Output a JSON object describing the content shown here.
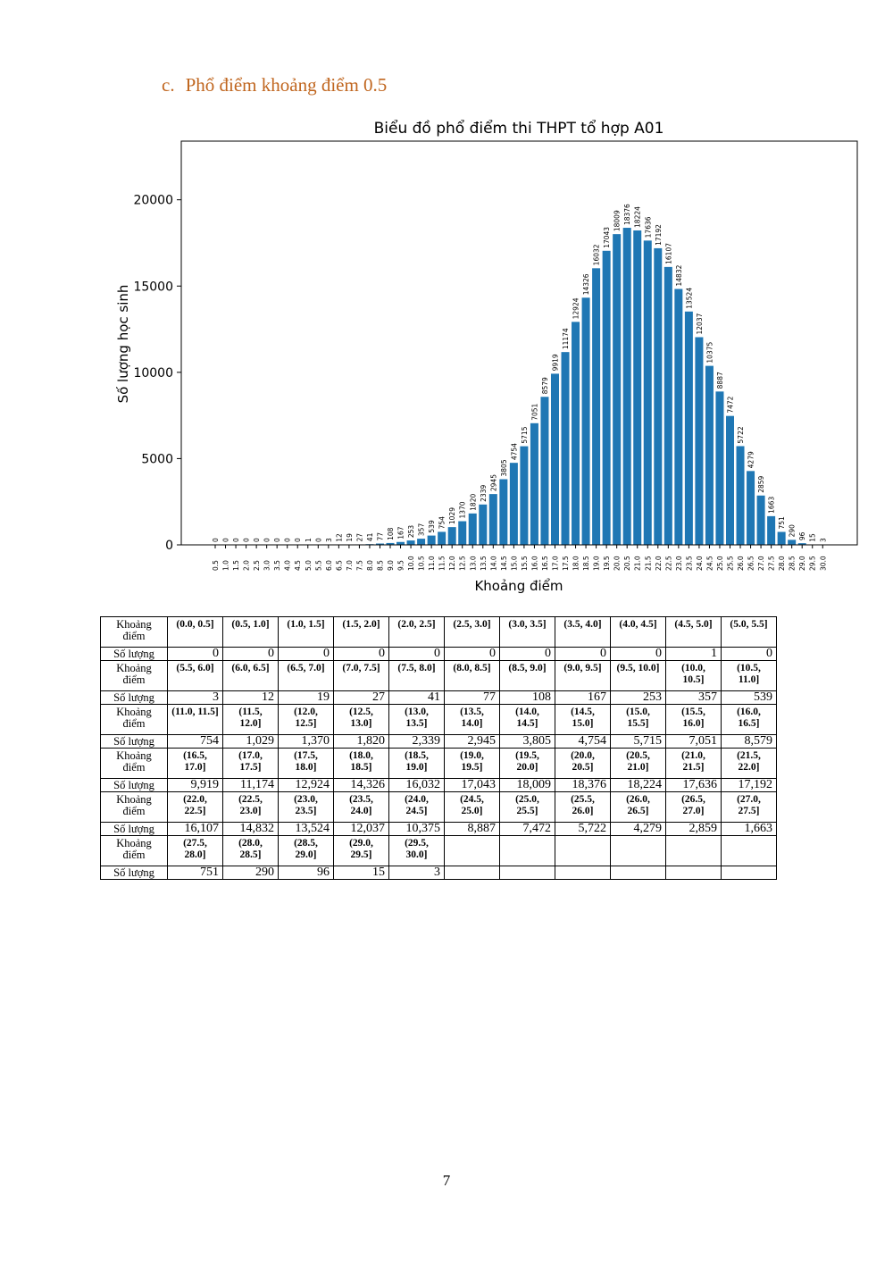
{
  "heading": {
    "number": "c.",
    "text": "Phổ điểm khoảng điểm 0.5"
  },
  "chart_data": {
    "type": "bar",
    "title": "Biểu đồ phổ điểm thi THPT tổ hợp A01",
    "xlabel": "Khoảng điểm",
    "ylabel": "Số lượng học sinh",
    "ylim": [
      0,
      23400
    ],
    "yticks": [
      0,
      5000,
      10000,
      15000,
      20000
    ],
    "color": "#1f77b4",
    "categories": [
      "0.5",
      "1.0",
      "1.5",
      "2.0",
      "2.5",
      "3.0",
      "3.5",
      "4.0",
      "4.5",
      "5.0",
      "5.5",
      "6.0",
      "6.5",
      "7.0",
      "7.5",
      "8.0",
      "8.5",
      "9.0",
      "9.5",
      "10.0",
      "10.5",
      "11.0",
      "11.5",
      "12.0",
      "12.5",
      "13.0",
      "13.5",
      "14.0",
      "14.5",
      "15.0",
      "15.5",
      "16.0",
      "16.5",
      "17.0",
      "17.5",
      "18.0",
      "18.5",
      "19.0",
      "19.5",
      "20.0",
      "20.5",
      "21.0",
      "21.5",
      "22.0",
      "22.5",
      "23.0",
      "23.5",
      "24.0",
      "24.5",
      "25.0",
      "25.5",
      "26.0",
      "26.5",
      "27.0",
      "27.5",
      "28.0",
      "28.5",
      "29.0",
      "29.5",
      "30.0"
    ],
    "values": [
      0,
      0,
      0,
      0,
      0,
      0,
      0,
      0,
      0,
      1,
      0,
      3,
      12,
      19,
      27,
      41,
      77,
      108,
      167,
      253,
      357,
      539,
      754,
      1029,
      1370,
      1820,
      2339,
      2945,
      3805,
      4754,
      5715,
      7051,
      8579,
      9919,
      11174,
      12924,
      14326,
      16032,
      17043,
      18009,
      18376,
      18224,
      17636,
      17192,
      16107,
      14832,
      13524,
      12037,
      10375,
      8887,
      7472,
      5722,
      4279,
      2859,
      1663,
      751,
      290,
      96,
      15,
      3
    ]
  },
  "table": {
    "label_header": "Khoảng điểm",
    "count_header": "Số lượng",
    "groups": [
      {
        "labels": [
          "(0.0, 0.5]",
          "(0.5, 1.0]",
          "(1.0, 1.5]",
          "(1.5, 2.0]",
          "(2.0, 2.5]",
          "(2.5, 3.0]",
          "(3.0, 3.5]",
          "(3.5, 4.0]",
          "(4.0, 4.5]",
          "(4.5, 5.0]",
          "(5.0, 5.5]"
        ],
        "counts": [
          "0",
          "0",
          "0",
          "0",
          "0",
          "0",
          "0",
          "0",
          "0",
          "1",
          "0"
        ]
      },
      {
        "labels": [
          "(5.5, 6.0]",
          "(6.0, 6.5]",
          "(6.5, 7.0]",
          "(7.0, 7.5]",
          "(7.5, 8.0]",
          "(8.0, 8.5]",
          "(8.5, 9.0]",
          "(9.0, 9.5]",
          "(9.5, 10.0]",
          "(10.0, 10.5]",
          "(10.5, 11.0]"
        ],
        "counts": [
          "3",
          "12",
          "19",
          "27",
          "41",
          "77",
          "108",
          "167",
          "253",
          "357",
          "539"
        ]
      },
      {
        "labels": [
          "(11.0, 11.5]",
          "(11.5, 12.0]",
          "(12.0, 12.5]",
          "(12.5, 13.0]",
          "(13.0, 13.5]",
          "(13.5, 14.0]",
          "(14.0, 14.5]",
          "(14.5, 15.0]",
          "(15.0, 15.5]",
          "(15.5, 16.0]",
          "(16.0, 16.5]"
        ],
        "counts": [
          "754",
          "1,029",
          "1,370",
          "1,820",
          "2,339",
          "2,945",
          "3,805",
          "4,754",
          "5,715",
          "7,051",
          "8,579"
        ]
      },
      {
        "labels": [
          "(16.5, 17.0]",
          "(17.0, 17.5]",
          "(17.5, 18.0]",
          "(18.0, 18.5]",
          "(18.5, 19.0]",
          "(19.0, 19.5]",
          "(19.5, 20.0]",
          "(20.0, 20.5]",
          "(20.5, 21.0]",
          "(21.0, 21.5]",
          "(21.5, 22.0]"
        ],
        "counts": [
          "9,919",
          "11,174",
          "12,924",
          "14,326",
          "16,032",
          "17,043",
          "18,009",
          "18,376",
          "18,224",
          "17,636",
          "17,192"
        ]
      },
      {
        "labels": [
          "(22.0, 22.5]",
          "(22.5, 23.0]",
          "(23.0, 23.5]",
          "(23.5, 24.0]",
          "(24.0, 24.5]",
          "(24.5, 25.0]",
          "(25.0, 25.5]",
          "(25.5, 26.0]",
          "(26.0, 26.5]",
          "(26.5, 27.0]",
          "(27.0, 27.5]"
        ],
        "counts": [
          "16,107",
          "14,832",
          "13,524",
          "12,037",
          "10,375",
          "8,887",
          "7,472",
          "5,722",
          "4,279",
          "2,859",
          "1,663"
        ]
      },
      {
        "labels": [
          "(27.5, 28.0]",
          "(28.0, 28.5]",
          "(28.5, 29.0]",
          "(29.0, 29.5]",
          "(29.5, 30.0]",
          "",
          "",
          "",
          "",
          "",
          ""
        ],
        "counts": [
          "751",
          "290",
          "96",
          "15",
          "3",
          "",
          "",
          "",
          "",
          "",
          ""
        ]
      }
    ]
  },
  "page_number": "7"
}
